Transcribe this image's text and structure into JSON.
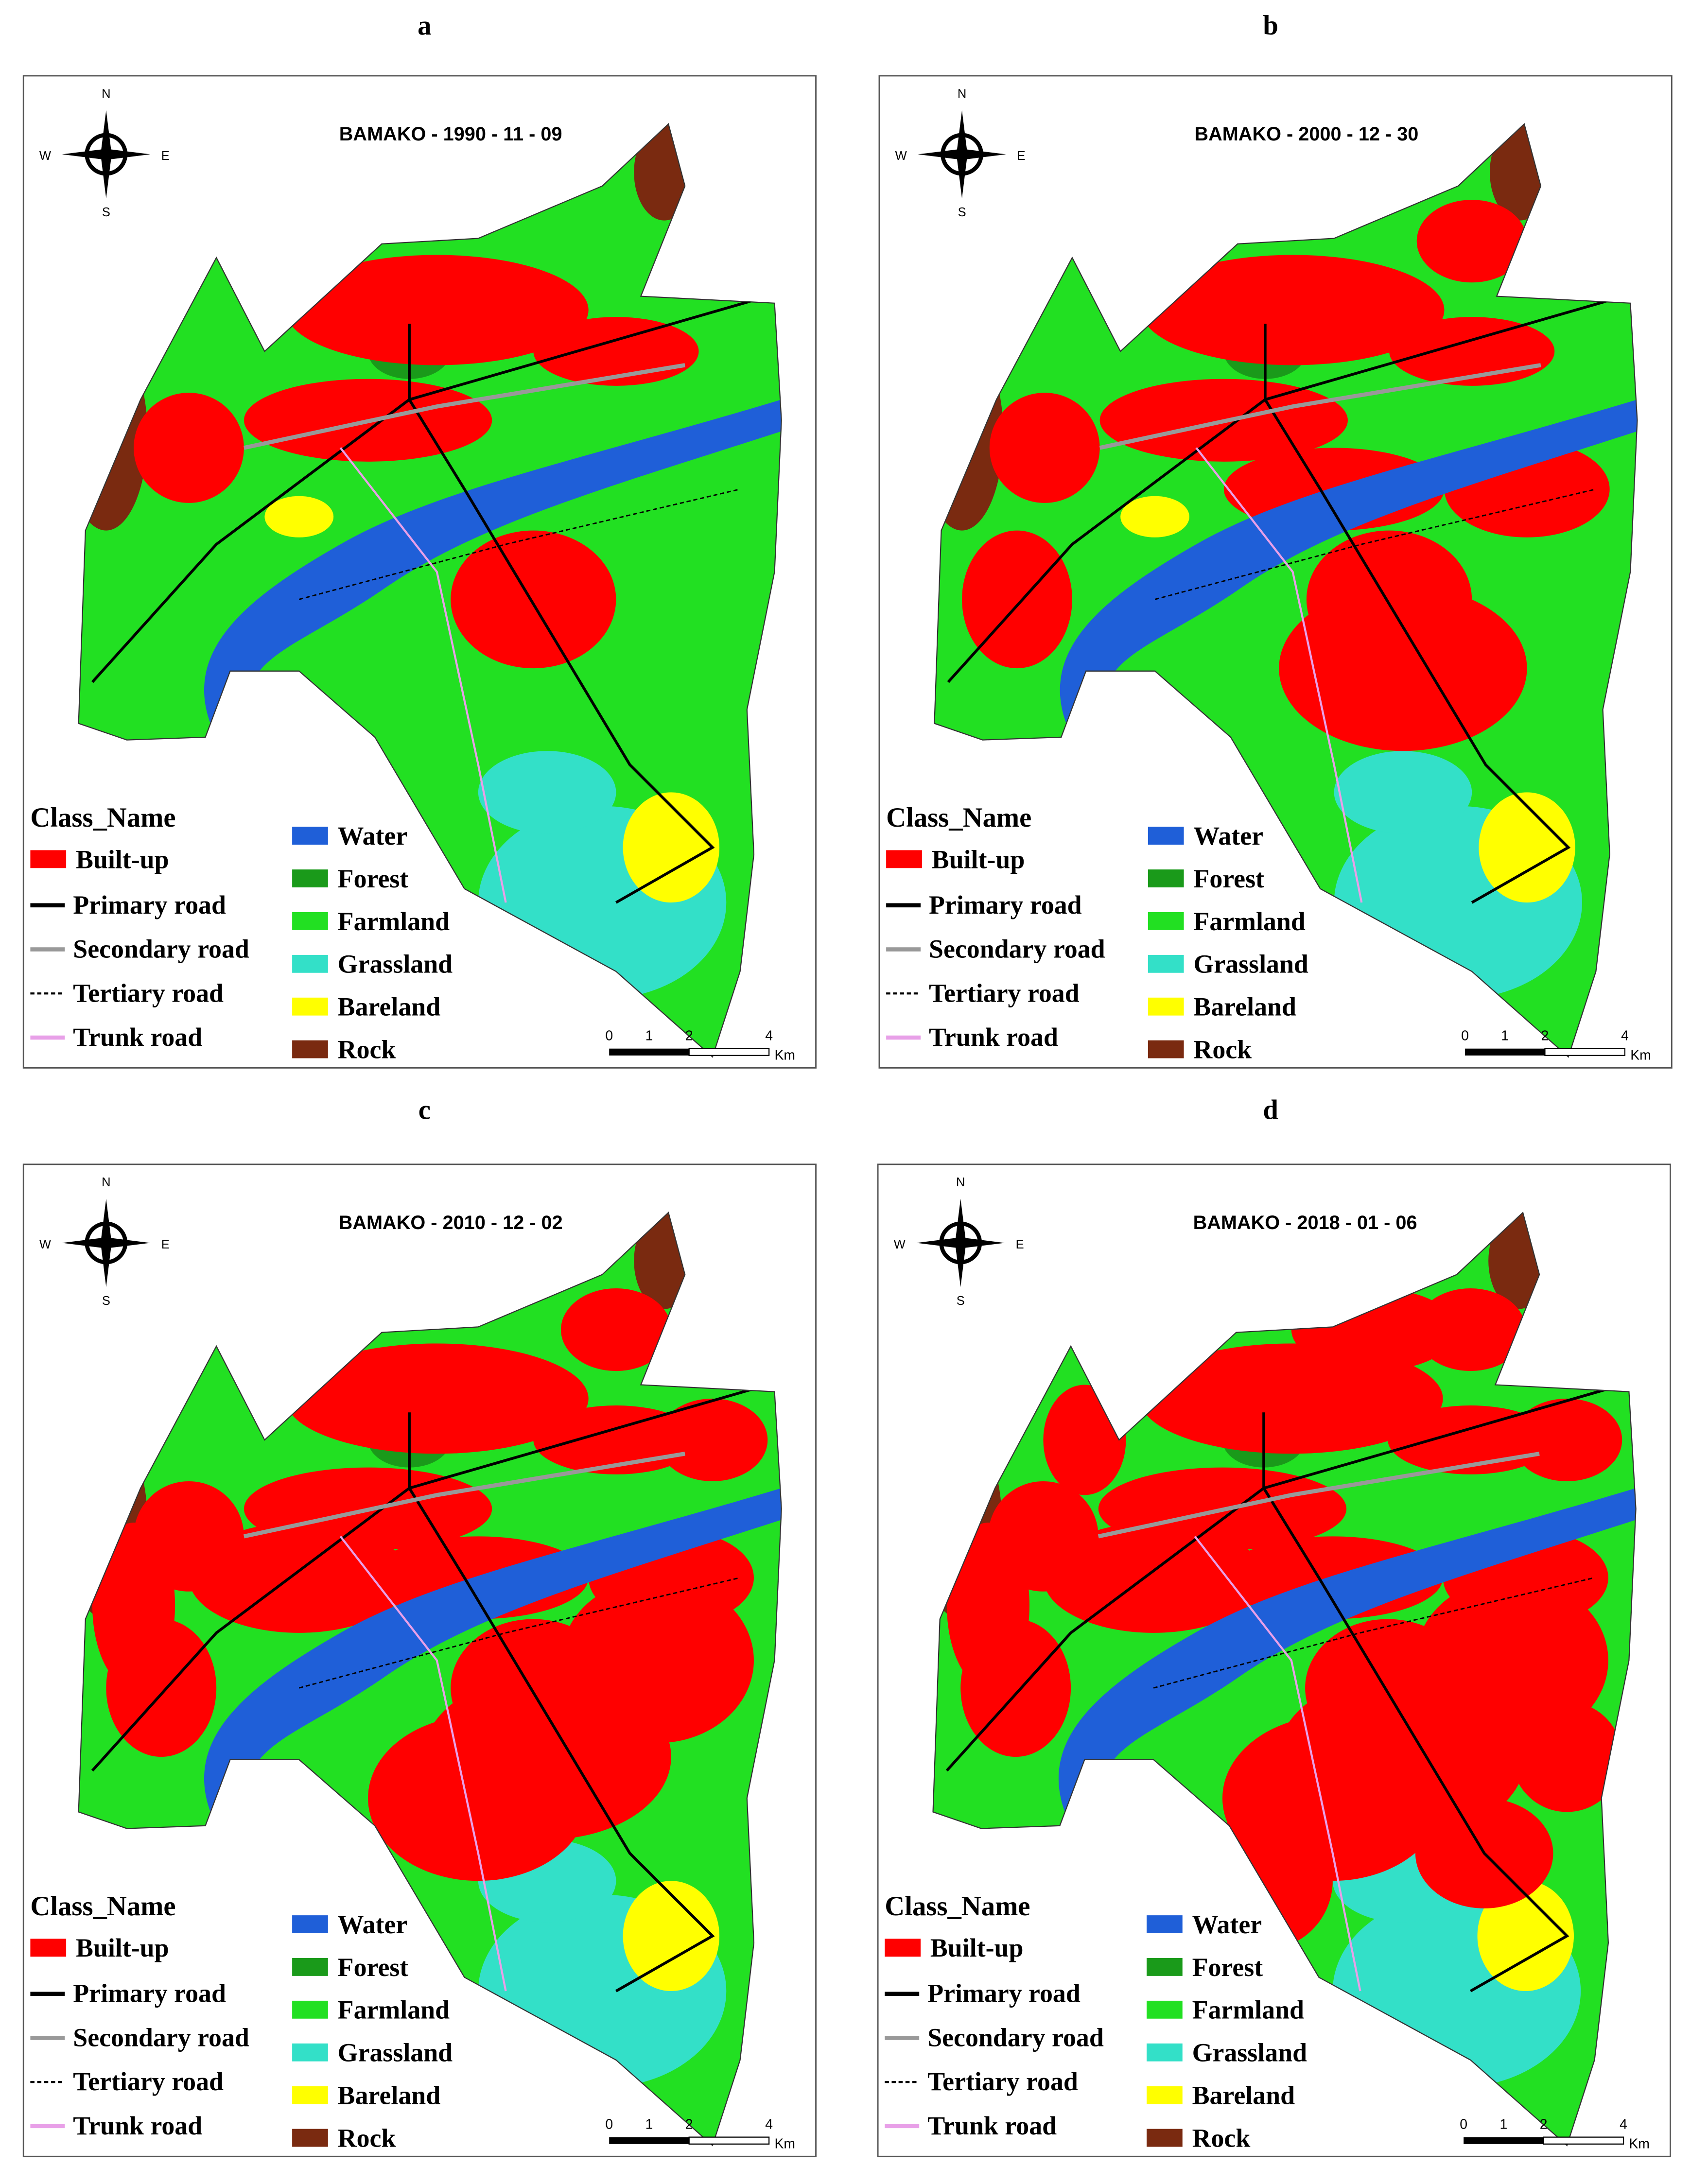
{
  "panels": [
    {
      "label": "a",
      "title": "BAMAKO - 1990 - 11 - 09"
    },
    {
      "label": "b",
      "title": "BAMAKO - 2000 - 12 - 30"
    },
    {
      "label": "c",
      "title": "BAMAKO - 2010 - 12 - 02"
    },
    {
      "label": "d",
      "title": "BAMAKO - 2018 - 01 - 06"
    }
  ],
  "legend": {
    "class_title": "Class_Name",
    "classes": [
      {
        "name": "Built-up",
        "color": "#ff0000"
      },
      {
        "name": "Water",
        "color": "#1f5fd8"
      },
      {
        "name": "Forest",
        "color": "#1a9a1a"
      },
      {
        "name": "Farmland",
        "color": "#22e022"
      },
      {
        "name": "Grassland",
        "color": "#33e0c8"
      },
      {
        "name": "Bareland",
        "color": "#ffff00"
      },
      {
        "name": "Rock",
        "color": "#7a2a10"
      }
    ],
    "roads": [
      {
        "name": "Primary road",
        "color": "#000000"
      },
      {
        "name": "Secondary road",
        "color": "#999999"
      },
      {
        "name": "Tertiary road",
        "color": "#000000"
      },
      {
        "name": "Trunk road",
        "color": "#e8a0e8"
      }
    ]
  },
  "compass": {
    "n": "N",
    "s": "S",
    "e": "E",
    "w": "W"
  },
  "scale": {
    "labels": [
      "0",
      "1",
      "2",
      "4"
    ],
    "unit": "Km"
  }
}
